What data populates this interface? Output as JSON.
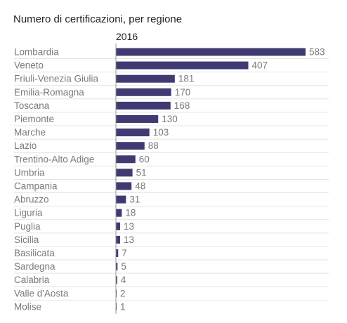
{
  "chart_data": {
    "type": "bar",
    "orientation": "horizontal",
    "title": "Numero di certificazioni, per regione",
    "series": [
      {
        "name": "2016",
        "values": [
          583,
          407,
          181,
          170,
          168,
          130,
          103,
          88,
          60,
          51,
          48,
          31,
          18,
          13,
          13,
          7,
          5,
          4,
          2,
          1
        ]
      }
    ],
    "categories": [
      "Lombardia",
      "Veneto",
      "Friuli-Venezia Giulia",
      "Emilia-Romagna",
      "Toscana",
      "Piemonte",
      "Marche",
      "Lazio",
      "Trentino-Alto Adige",
      "Umbria",
      "Campania",
      "Abruzzo",
      "Liguria",
      "Puglia",
      "Sicilia",
      "Basilicata",
      "Sardegna",
      "Calabria",
      "Valle d'Aosta",
      "Molise"
    ],
    "xlim": [
      0,
      583
    ],
    "grid": false,
    "legend": "none",
    "colors": {
      "bar": "#3f3b72",
      "label": "#7a7a7a",
      "row_divider": "#e4e4e4",
      "axis": "#999999",
      "text": "#222222"
    }
  }
}
